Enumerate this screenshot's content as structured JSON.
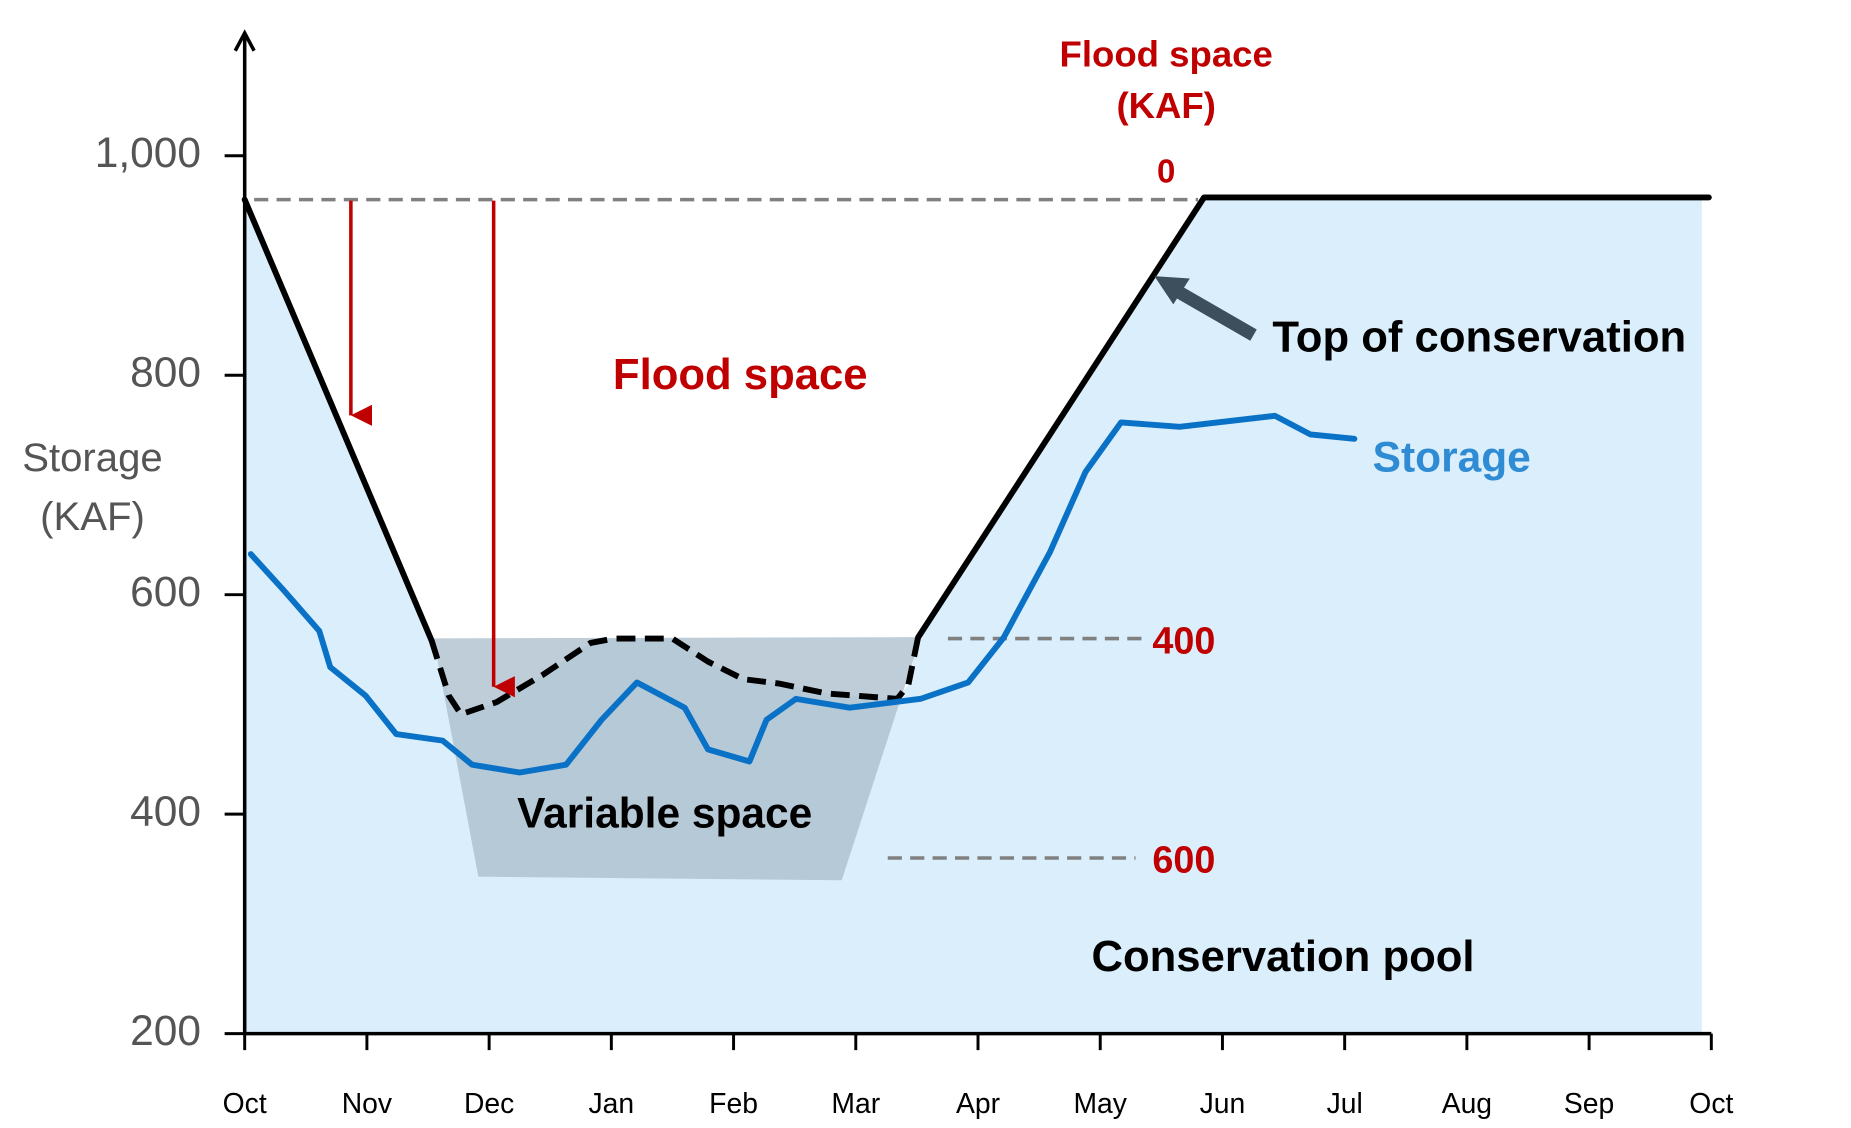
{
  "chart_data": {
    "type": "line",
    "y_label": [
      "Storage",
      "(KAF)"
    ],
    "y2_label": [
      "Flood space",
      "(KAF)"
    ],
    "annotations": {
      "flood_space": "Flood space",
      "variable_space": "Variable space",
      "conservation_pool": "Conservation pool",
      "top_of_conservation": "Top of conservation"
    },
    "xlim": [
      0,
      12
    ],
    "xticks": [
      {
        "value": 0,
        "label": "Oct"
      },
      {
        "value": 1,
        "label": "Nov"
      },
      {
        "value": 2,
        "label": "Dec"
      },
      {
        "value": 3,
        "label": "Jan"
      },
      {
        "value": 4,
        "label": "Feb"
      },
      {
        "value": 5,
        "label": "Mar"
      },
      {
        "value": 6,
        "label": "Apr"
      },
      {
        "value": 7,
        "label": "May"
      },
      {
        "value": 8,
        "label": "Jun"
      },
      {
        "value": 9,
        "label": "Jul"
      },
      {
        "value": 10,
        "label": "Aug"
      },
      {
        "value": 11,
        "label": "Sep"
      },
      {
        "value": 12,
        "label": "Oct"
      }
    ],
    "ylim": [
      200,
      1100
    ],
    "yticks": [
      200,
      400,
      600,
      800,
      {
        "value": 1000,
        "label": "1,000"
      }
    ],
    "y2lim": [
      760,
      -140
    ],
    "y2ticks": [
      0,
      400,
      600
    ],
    "series": [
      {
        "name": "Top of conservation",
        "color": "#000000",
        "x": [
          0,
          1.53,
          null,
          5.51,
          7.85,
          11.98
        ],
        "values": [
          960,
          558,
          null,
          561,
          962,
          962
        ]
      },
      {
        "color": "#000000",
        "dashed": true,
        "x": [
          1.53,
          1.67,
          1.77,
          2.06,
          2.44,
          2.83,
          3.02,
          3.5,
          3.79,
          4.08,
          4.37,
          4.76,
          5.34,
          5.43,
          5.51
        ],
        "values": [
          558,
          508,
          491,
          502,
          527,
          556,
          560,
          560,
          539,
          523,
          519,
          510,
          505,
          518,
          561
        ]
      },
      {
        "name": "Storage",
        "color": "#0a72c6",
        "x": [
          0.05,
          0.32,
          0.61,
          0.7,
          0.99,
          1.24,
          1.62,
          1.86,
          2.25,
          2.63,
          2.92,
          3.21,
          3.6,
          3.79,
          4.13,
          4.27,
          4.51,
          4.95,
          5.53,
          5.92,
          6.21,
          6.59,
          6.88,
          7.17,
          7.65,
          8.43,
          8.72,
          9.08
        ],
        "values": [
          637,
          604,
          567,
          534,
          508,
          473,
          467,
          445,
          438,
          445,
          486,
          520,
          497,
          459,
          448,
          486,
          505,
          497,
          505,
          520,
          561,
          639,
          712,
          757,
          753,
          763,
          746,
          742
        ]
      }
    ]
  }
}
